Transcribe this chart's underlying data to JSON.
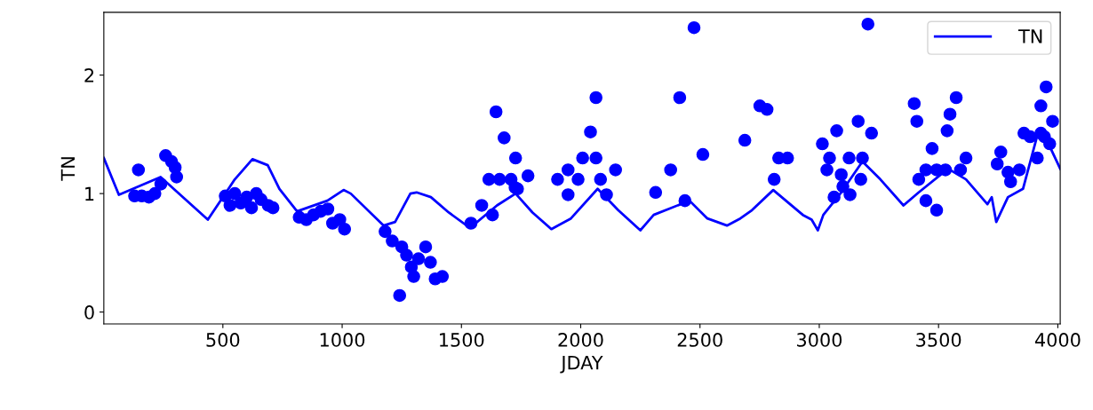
{
  "chart_data": {
    "type": "line",
    "xlabel": "JDAY",
    "ylabel": "TN",
    "xlim": [
      1,
      4010
    ],
    "ylim": [
      -0.1,
      2.53
    ],
    "xticks": [
      500,
      1000,
      1500,
      2000,
      2500,
      3000,
      3500,
      4000
    ],
    "yticks": [
      0,
      1,
      2
    ],
    "grid": false,
    "legend": "top right",
    "series": [
      {
        "name": "TN",
        "color": "#0000ff",
        "line_style": "solid",
        "marker": "none",
        "x": [
          1,
          64,
          239,
          437,
          550,
          624,
          688,
          737,
          811,
          938,
          1006,
          1036,
          1174,
          1222,
          1286,
          1312,
          1372,
          1447,
          1536,
          1649,
          1727,
          1798,
          1877,
          1959,
          2071,
          2157,
          2250,
          2306,
          2456,
          2531,
          2613,
          2669,
          2718,
          2807,
          2931,
          2968,
          2994,
          3017,
          3092,
          3181,
          3256,
          3353,
          3417,
          3540,
          3615,
          3705,
          3723,
          3742,
          3791,
          3854,
          3914,
          3940,
          4010
        ],
        "values": [
          1.3,
          0.99,
          1.14,
          0.78,
          1.12,
          1.29,
          1.24,
          1.04,
          0.85,
          0.94,
          1.03,
          1.0,
          0.73,
          0.76,
          1.0,
          1.01,
          0.97,
          0.84,
          0.71,
          0.9,
          1.0,
          0.84,
          0.7,
          0.79,
          1.04,
          0.86,
          0.69,
          0.82,
          0.94,
          0.79,
          0.73,
          0.79,
          0.86,
          1.03,
          0.82,
          0.78,
          0.69,
          0.82,
          1.01,
          1.27,
          1.12,
          0.9,
          1.01,
          1.21,
          1.12,
          0.91,
          0.97,
          0.76,
          0.97,
          1.04,
          1.49,
          1.51,
          1.21
        ]
      },
      {
        "type": "scatter",
        "color": "#0000ff",
        "marker": "circle",
        "x": [
          146,
          130,
          160,
          190,
          215,
          240,
          260,
          285,
          300,
          306,
          510,
          530,
          550,
          575,
          600,
          620,
          640,
          660,
          690,
          710,
          820,
          850,
          880,
          910,
          940,
          960,
          990,
          1010,
          1180,
          1210,
          1241,
          1250,
          1270,
          1290,
          1300,
          1320,
          1350,
          1370,
          1390,
          1420,
          1540,
          1585,
          1630,
          1645,
          1679,
          1727,
          1615,
          1660,
          1708,
          1735,
          1779,
          1725,
          1903,
          1947,
          1947,
          1989,
          2008,
          2041,
          2064,
          2064,
          2083,
          2108,
          2146,
          2314,
          2377,
          2415,
          2437,
          2475,
          2512,
          2688,
          2751,
          2781,
          2811,
          2830,
          2867,
          3013,
          3073,
          3043,
          3032,
          3062,
          3092,
          3099,
          3129,
          3125,
          3163,
          3174,
          3181,
          3219,
          3204,
          3398,
          3409,
          3417,
          3473,
          3447,
          3447,
          3492,
          3492,
          3529,
          3536,
          3548,
          3574,
          3592,
          3615,
          3761,
          3746,
          3791,
          3802,
          3839,
          3858,
          3884,
          3914,
          3929,
          3929,
          3951,
          3978,
          3966,
          3944
        ],
        "values": [
          1.2,
          0.98,
          0.98,
          0.97,
          1.0,
          1.08,
          1.32,
          1.27,
          1.22,
          1.14,
          0.98,
          0.9,
          1.0,
          0.92,
          0.97,
          0.88,
          1.0,
          0.95,
          0.9,
          0.88,
          0.8,
          0.78,
          0.82,
          0.85,
          0.87,
          0.75,
          0.78,
          0.7,
          0.68,
          0.6,
          0.14,
          0.55,
          0.48,
          0.38,
          0.3,
          0.45,
          0.55,
          0.42,
          0.28,
          0.3,
          0.75,
          0.9,
          0.82,
          1.69,
          1.47,
          1.3,
          1.12,
          1.12,
          1.12,
          1.04,
          1.15,
          1.05,
          1.12,
          1.2,
          0.99,
          1.12,
          1.3,
          1.52,
          1.81,
          1.3,
          1.12,
          0.99,
          1.2,
          1.01,
          1.2,
          1.81,
          0.94,
          2.4,
          1.33,
          1.45,
          1.74,
          1.71,
          1.12,
          1.3,
          1.3,
          1.42,
          1.53,
          1.3,
          1.2,
          0.97,
          1.16,
          1.06,
          0.99,
          1.3,
          1.61,
          1.12,
          1.3,
          1.51,
          2.43,
          1.76,
          1.61,
          1.12,
          1.38,
          1.2,
          0.94,
          0.86,
          1.2,
          1.2,
          1.53,
          1.67,
          1.81,
          1.2,
          1.3,
          1.35,
          1.25,
          1.18,
          1.1,
          1.2,
          1.51,
          1.48,
          1.3,
          1.51,
          1.74,
          1.9,
          1.61,
          1.42,
          1.48
        ]
      }
    ]
  }
}
